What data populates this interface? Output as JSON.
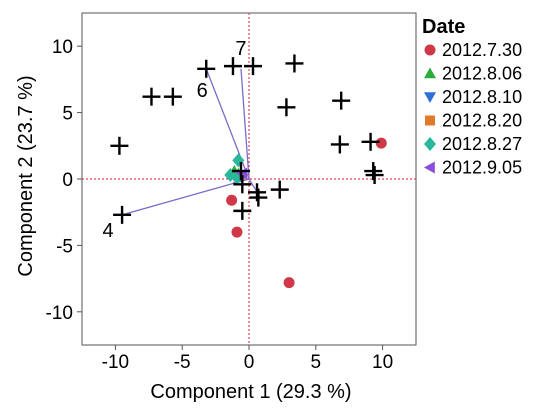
{
  "chart_data": {
    "type": "scatter",
    "title": "",
    "xlabel": "Component 1  (29.3 %)",
    "ylabel": "Component 2  (23.7 %)",
    "xlim": [
      -12.5,
      12.5
    ],
    "ylim": [
      -12.5,
      12.5
    ],
    "x_ticks": [
      -10,
      -5,
      0,
      5,
      10
    ],
    "y_ticks": [
      -10,
      -5,
      0,
      5,
      10
    ],
    "grid": false,
    "legend_position": "right",
    "legend": {
      "title": "Date",
      "entries": [
        {
          "label": "2012.7.30",
          "marker": "circle",
          "color": "#d0384a"
        },
        {
          "label": "2012.8.06",
          "marker": "triangle-up",
          "color": "#2bab3c"
        },
        {
          "label": "2012.8.10",
          "marker": "triangle-down",
          "color": "#2f6fd6"
        },
        {
          "label": "2012.8.20",
          "marker": "square",
          "color": "#e07a2c"
        },
        {
          "label": "2012.8.27",
          "marker": "diamond",
          "color": "#2bb89a"
        },
        {
          "label": "2012.9.05",
          "marker": "triangle-left",
          "color": "#8a4fd8"
        }
      ]
    },
    "series": [
      {
        "name": "2012.7.30",
        "marker": "circle",
        "color": "#d0384a",
        "points": [
          [
            -1.3,
            -1.6
          ],
          [
            -0.9,
            -4.0
          ],
          [
            3.0,
            -7.8
          ],
          [
            9.9,
            2.7
          ]
        ]
      },
      {
        "name": "2012.8.06",
        "marker": "triangle-up",
        "color": "#2bab3c",
        "points": [
          [
            -0.8,
            0.4
          ],
          [
            -1.1,
            0.6
          ]
        ]
      },
      {
        "name": "2012.8.10",
        "marker": "triangle-down",
        "color": "#2f6fd6",
        "points": [
          [
            -0.6,
            0.2
          ]
        ]
      },
      {
        "name": "2012.8.20",
        "marker": "square",
        "color": "#e07a2c",
        "points": [
          [
            -0.7,
            0.3
          ]
        ]
      },
      {
        "name": "2012.8.27",
        "marker": "diamond",
        "color": "#2bb89a",
        "points": [
          [
            -1.4,
            0.3
          ],
          [
            -0.8,
            1.4
          ],
          [
            -0.9,
            0.1
          ]
        ]
      },
      {
        "name": "2012.9.05",
        "marker": "triangle-left",
        "color": "#8a4fd8",
        "points": [
          [
            -0.5,
            0.4
          ]
        ]
      },
      {
        "name": "",
        "marker": "plus",
        "color": "#000000",
        "points": [
          [
            -3.2,
            8.3
          ],
          [
            -1.2,
            8.5
          ],
          [
            0.3,
            8.5
          ],
          [
            3.4,
            8.7
          ],
          [
            -7.3,
            6.2
          ],
          [
            -5.7,
            6.2
          ],
          [
            2.8,
            5.4
          ],
          [
            6.9,
            5.9
          ],
          [
            -9.7,
            2.5
          ],
          [
            6.8,
            2.6
          ],
          [
            9.1,
            2.8
          ],
          [
            9.3,
            0.6
          ],
          [
            9.4,
            0.3
          ],
          [
            -0.6,
            0.6
          ],
          [
            -0.5,
            -0.4
          ],
          [
            0.6,
            -1.0
          ],
          [
            0.7,
            -1.4
          ],
          [
            2.3,
            -0.8
          ],
          [
            -9.5,
            -2.7
          ],
          [
            -0.5,
            -2.4
          ]
        ]
      }
    ],
    "loading_vectors": [
      {
        "label": "4",
        "x": -9.5,
        "y": -2.7
      },
      {
        "label": "6",
        "x": -3.2,
        "y": 8.3
      },
      {
        "label": "7",
        "x": -0.6,
        "y": 8.3
      },
      {
        "label": "",
        "x": 0.8,
        "y": -1.3
      },
      {
        "label": "",
        "x": -1.2,
        "y": -0.3
      }
    ],
    "reference_lines": {
      "x": 0,
      "y": 0,
      "color": "#e0455a",
      "style": "dotted"
    },
    "vector_color": "#7e6bc9"
  }
}
